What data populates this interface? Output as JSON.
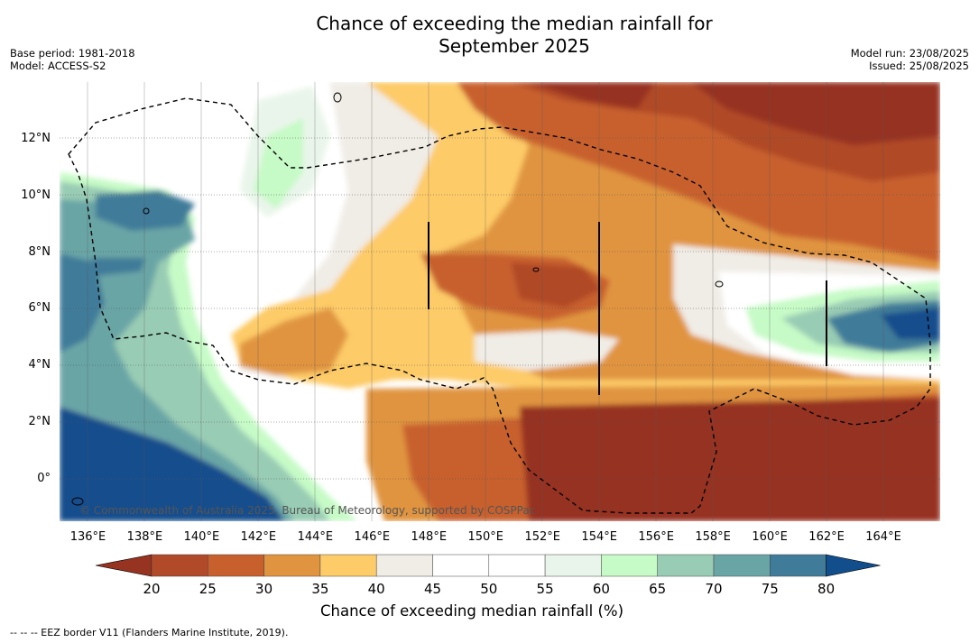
{
  "title": {
    "line1": "Chance of exceeding the median rainfall for",
    "line2": "September 2025"
  },
  "info_left": [
    "Base period: 1981-2018",
    "Model: ACCESS-S2"
  ],
  "info_right": [
    "Model run: 23/08/2025",
    "Issued: 25/08/2025"
  ],
  "lat_labels": [
    {
      "text": "12°N",
      "lat": 12
    },
    {
      "text": "10°N",
      "lat": 10
    },
    {
      "text": "8°N",
      "lat": 8
    },
    {
      "text": "6°N",
      "lat": 6
    },
    {
      "text": "4°N",
      "lat": 4
    },
    {
      "text": "2°N",
      "lat": 2
    },
    {
      "text": "0°",
      "lat": 0
    }
  ],
  "lon_labels": [
    {
      "text": "136°E",
      "lon": 136
    },
    {
      "text": "138°E",
      "lon": 138
    },
    {
      "text": "140°E",
      "lon": 140
    },
    {
      "text": "142°E",
      "lon": 142
    },
    {
      "text": "144°E",
      "lon": 144
    },
    {
      "text": "146°E",
      "lon": 146
    },
    {
      "text": "148°E",
      "lon": 148
    },
    {
      "text": "150°E",
      "lon": 150
    },
    {
      "text": "152°E",
      "lon": 152
    },
    {
      "text": "154°E",
      "lon": 154
    },
    {
      "text": "156°E",
      "lon": 156
    },
    {
      "text": "158°E",
      "lon": 158
    },
    {
      "text": "160°E",
      "lon": 160
    },
    {
      "text": "162°E",
      "lon": 162
    },
    {
      "text": "164°E",
      "lon": 164
    }
  ],
  "extent": {
    "lon_min": 135,
    "lon_max": 166,
    "lat_min": -1.5,
    "lat_max": 14
  },
  "copyright": "© Commonwealth of Australia 2025, Bureau of Meteorology, supported by COSPPac",
  "colorbar": {
    "ticks": [
      "20",
      "25",
      "30",
      "35",
      "40",
      "45",
      "50",
      "55",
      "60",
      "65",
      "70",
      "75",
      "80"
    ],
    "under_color": "#963321",
    "over_color": "#124e8c",
    "colors": [
      "#b04a28",
      "#c8602e",
      "#e0943f",
      "#fdcb67",
      "#f0ece6",
      "#ffffff",
      "#ffffff",
      "#e9f5ea",
      "#c6fac6",
      "#99ccb4",
      "#6aa5a6",
      "#407c99"
    ],
    "label": "Chance of exceeding median rainfall (%)"
  },
  "footnote": "--  --  -- EEZ border V11 (Flanders Marine Institute, 2019)."
}
